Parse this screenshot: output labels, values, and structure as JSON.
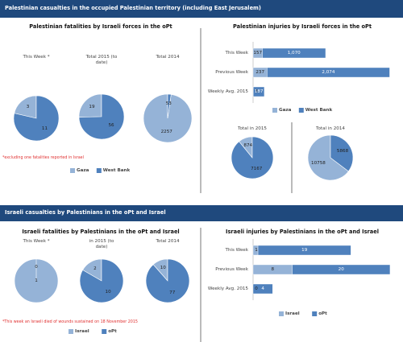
{
  "banners": [
    "Palestinian casualties in the occupied Palestinian territory (including East Jerusalem)",
    "Israeli casualties by Palestinians in the oPt and Israel"
  ],
  "chart_data": [
    {
      "type": "pie",
      "title": "Palestinian fatalities by Israeli forces in the oPt",
      "categories": [
        "Gaza",
        "West Bank"
      ],
      "colors": [
        "#95b3d7",
        "#4f81bd"
      ],
      "pies": [
        {
          "title": "This Week *",
          "values": [
            3,
            11
          ]
        },
        {
          "title": "Total 2015 (to date)",
          "values": [
            19,
            56
          ]
        },
        {
          "title": "Total 2014",
          "values": [
            2257,
            53
          ]
        }
      ],
      "note": "*excluding one fatalities reported in Israel"
    },
    {
      "type": "bar",
      "title": "Palestinian injuries by Israeli forces in the oPt",
      "categories": [
        "This Week",
        "Previous Week",
        "Weekly Avg. 2015"
      ],
      "xlim": [
        0,
        2400
      ],
      "series": [
        {
          "name": "Gaza",
          "color": "#95b3d7",
          "values": [
            157,
            237,
            3
          ]
        },
        {
          "name": "West Bank",
          "color": "#4f81bd",
          "values": [
            1070,
            2074,
            187
          ],
          "value_labels": [
            "1,070",
            "2,074",
            "187"
          ]
        }
      ]
    },
    {
      "type": "pie",
      "colors": [
        "#95b3d7",
        "#4f81bd"
      ],
      "pies": [
        {
          "title": "Total in 2015",
          "values": [
            874,
            7167
          ]
        },
        {
          "title": "Total in 2014",
          "values": [
            10758,
            5868
          ]
        }
      ]
    },
    {
      "type": "pie",
      "title": "Israeli fatalities by Palestinians in the oPt and Israel",
      "categories": [
        "Israel",
        "oPt"
      ],
      "colors": [
        "#95b3d7",
        "#4f81bd"
      ],
      "pies": [
        {
          "title": "This Week *",
          "values": [
            1,
            0
          ]
        },
        {
          "title": "in 2015 (to date)",
          "values": [
            2,
            10
          ]
        },
        {
          "title": "Total 2014",
          "values": [
            10,
            77
          ]
        }
      ],
      "note": "*This week an Israeli died of wounds sustained on 18 November 2015"
    },
    {
      "type": "bar",
      "title": "Israeli injuries by Palestinians in the oPt and Israel",
      "categories": [
        "This Week",
        "Previous Week",
        "Weekly Avg. 2015"
      ],
      "xlim": [
        0,
        29
      ],
      "series": [
        {
          "name": "Israel",
          "color": "#95b3d7",
          "values": [
            1,
            8,
            0
          ]
        },
        {
          "name": "oPt",
          "color": "#4f81bd",
          "values": [
            19,
            20,
            4
          ]
        }
      ]
    }
  ]
}
